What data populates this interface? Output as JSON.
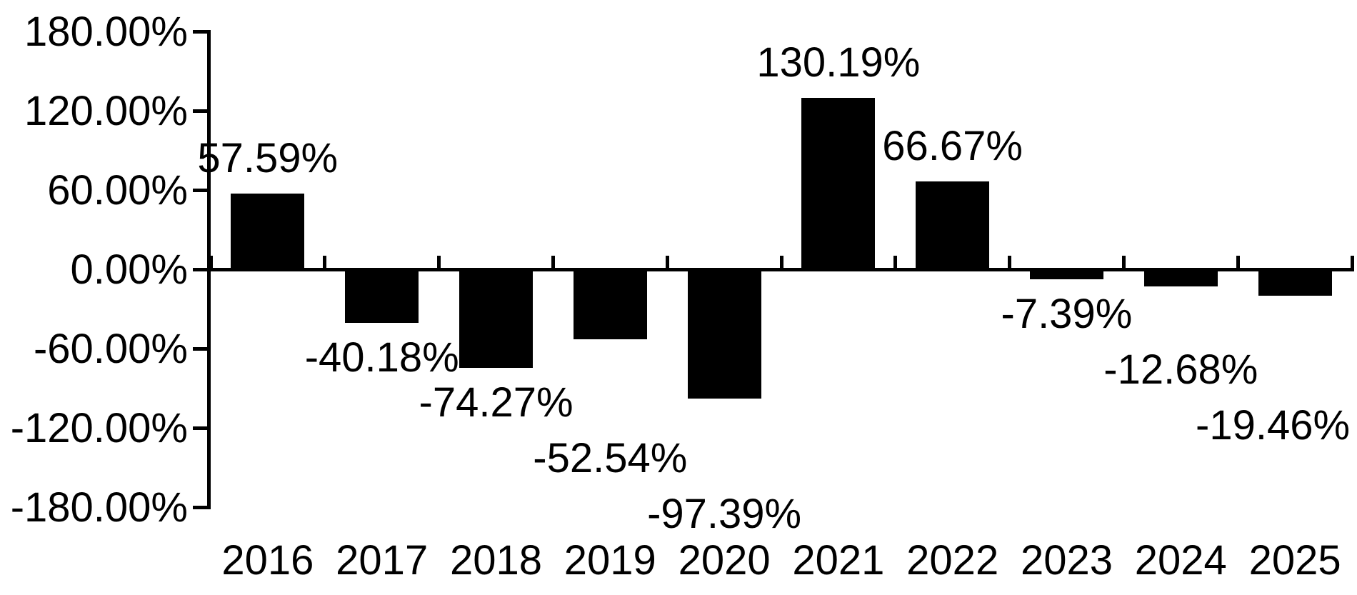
{
  "chart_data": {
    "type": "bar",
    "title": "",
    "categories": [
      "2016",
      "2017",
      "2018",
      "2019",
      "2020",
      "2021",
      "2022",
      "2023",
      "2024",
      "2025"
    ],
    "values": [
      57.59,
      -40.18,
      -74.27,
      -52.54,
      -97.39,
      130.19,
      66.67,
      -7.39,
      -12.68,
      -19.46
    ],
    "value_labels": [
      "57.59%",
      "-40.18%",
      "-74.27%",
      "-52.54%",
      "-97.39%",
      "130.19%",
      "66.67%",
      "-7.39%",
      "-12.68%",
      "-19.46%"
    ],
    "y_ticks": [
      {
        "value": 180,
        "label": "180.00%"
      },
      {
        "value": 120,
        "label": "120.00%"
      },
      {
        "value": 60,
        "label": "60.00%"
      },
      {
        "value": 0,
        "label": "0.00%"
      },
      {
        "value": -60,
        "label": "-60.00%"
      },
      {
        "value": -120,
        "label": "-120.00%"
      },
      {
        "value": -180,
        "label": "-180.00%"
      }
    ],
    "ylim": [
      -180,
      180
    ],
    "unit": "%",
    "xlabel": "",
    "ylabel": "",
    "grid": false,
    "legend": "none",
    "bar_color": "#000000",
    "axis_color": "#000000",
    "label_color": "#000000",
    "background_color": "#ffffff"
  }
}
